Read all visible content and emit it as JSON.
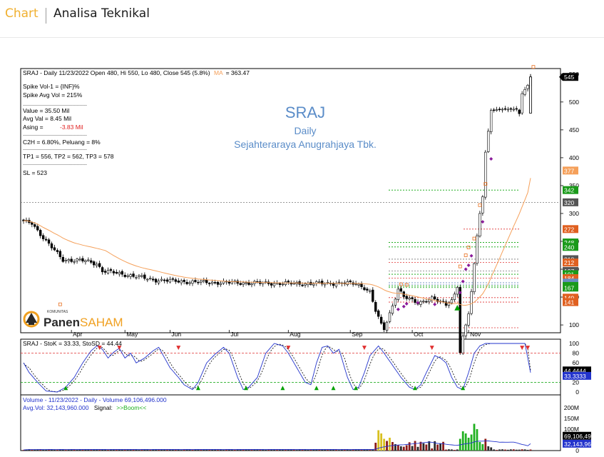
{
  "header": {
    "tab_label": "Chart",
    "title": "Analisa Teknikal"
  },
  "info_panel": {
    "ohlc_line": "SRAJ - Daily 11/23/2022 Open 480, Hi 550, Lo 480, Close 545 (5.8%)",
    "ma_label": "MA",
    "ma_value": "= 363.47",
    "lines": [
      "Spike Vol-1     = {INF}%",
      "Spike Avg Vol  = 215%",
      "---------------------------------------------",
      "Value    = 35.50 Mil",
      "Avg Val  = 8.45 Mil",
      "Asing    = ",
      "---------------------------------------------",
      "C2H  = 6.80%,   Peluang = 8%",
      "---------------------------------------------",
      "TP1 = 556, TP2 = 562, TP3 = 578",
      "---------------------------------------------",
      "SL = 523"
    ],
    "asing_value": "-3.83 Mil"
  },
  "watermark": {
    "ticker": "SRAJ",
    "period": "Daily",
    "company": "Sejahteraraya Anugrahjaya Tbk."
  },
  "logo": {
    "small_text": "KOMUNITAS",
    "brand_part1": "Panen",
    "brand_part2": "SAHAM"
  },
  "colors": {
    "candle_up": "#ffffff",
    "candle_down": "#000000",
    "ma": "#f5a05a",
    "stoch_k": "#2233cc",
    "stoch_d": "#000000",
    "support": "#00a000",
    "resistance": "#e03030",
    "watermark": "#5a8cc8",
    "brand_orange": "#f0a020"
  },
  "chart_data": [
    {
      "type": "candlestick",
      "panel": "price",
      "title": "SRAJ - Daily 11/23/2022 Open 480, Hi 550, Lo 480, Close 545 (5.8%)",
      "last": {
        "date": "11/23/2022",
        "open": 480,
        "high": 550,
        "low": 480,
        "close": 545,
        "change_pct": 5.8
      },
      "ma_value": 363.47,
      "ylim": [
        86,
        560
      ],
      "y_ticks": [
        100,
        150,
        200,
        250,
        300,
        350,
        400,
        450,
        500,
        550
      ],
      "x_ticks": [
        "Apr",
        "May",
        "Jun",
        "Jul",
        "Aug",
        "Sep",
        "Oct",
        "Nov"
      ],
      "price_tags": [
        {
          "label": "545",
          "value": 545,
          "color": "#000000"
        },
        {
          "label": "377",
          "value": 377,
          "color": "#f5a05a"
        },
        {
          "label": "342",
          "value": 342,
          "color": "#1a9a1a"
        },
        {
          "label": "320",
          "value": 320,
          "color": "#555555"
        },
        {
          "label": "272",
          "value": 272,
          "color": "#e06020"
        },
        {
          "label": "248",
          "value": 248,
          "color": "#1a9a1a"
        },
        {
          "label": "240",
          "value": 240,
          "color": "#1a9a1a"
        },
        {
          "label": "218",
          "value": 218,
          "color": "#555555"
        },
        {
          "label": "212",
          "value": 212,
          "color": "#e06020"
        },
        {
          "label": "197",
          "value": 197,
          "color": "#555555"
        },
        {
          "label": "191",
          "value": 191,
          "color": "#1a9a1a"
        },
        {
          "label": "184",
          "value": 184,
          "color": "#e06020"
        },
        {
          "label": "176",
          "value": 176,
          "color": "#6a8cc0"
        },
        {
          "label": "173",
          "value": 173,
          "color": "#6a8cc0"
        },
        {
          "label": "170",
          "value": 170,
          "color": "#1a9a1a"
        },
        {
          "label": "167",
          "value": 167,
          "color": "#1a9a1a"
        },
        {
          "label": "149",
          "value": 149,
          "color": "#e06020"
        },
        {
          "label": "141",
          "value": 141,
          "color": "#e06020"
        }
      ]
    },
    {
      "type": "line",
      "panel": "stochastic",
      "title": "SRAJ - StoK = 33.33, StoSD = 44.44",
      "stok": 33.33,
      "stosd": 44.44,
      "ylim": [
        0,
        100
      ],
      "y_ticks": [
        0,
        20,
        40,
        60,
        80,
        100
      ],
      "levels": [
        80,
        20
      ],
      "value_tags": [
        {
          "label": "44.4444",
          "value": 44.44,
          "color": "#000000"
        },
        {
          "label": "33.3333",
          "value": 33.33,
          "color": "#2233cc"
        }
      ]
    },
    {
      "type": "bar",
      "panel": "volume",
      "title": "Volume - 11/23/2022 - Daily - Volume 69,106,496.000",
      "volume": 69106496,
      "avg_volume": 32143960,
      "avg_line": "Avg.Vol: 32,143,960.000",
      "signal_label": "Signal:",
      "signal_value": ">>Boom<<",
      "ylim": [
        0,
        260
      ],
      "y_ticks": [
        {
          "label": "200M",
          "value": 200
        },
        {
          "label": "150M",
          "value": 150
        },
        {
          "label": "100M",
          "value": 100
        },
        {
          "label": "0",
          "value": 0
        }
      ],
      "value_tags": [
        {
          "label": "69,106,49",
          "value": 69.1,
          "color": "#000000"
        },
        {
          "label": "32,143,96",
          "value": 32.1,
          "color": "#2233cc"
        }
      ]
    }
  ]
}
